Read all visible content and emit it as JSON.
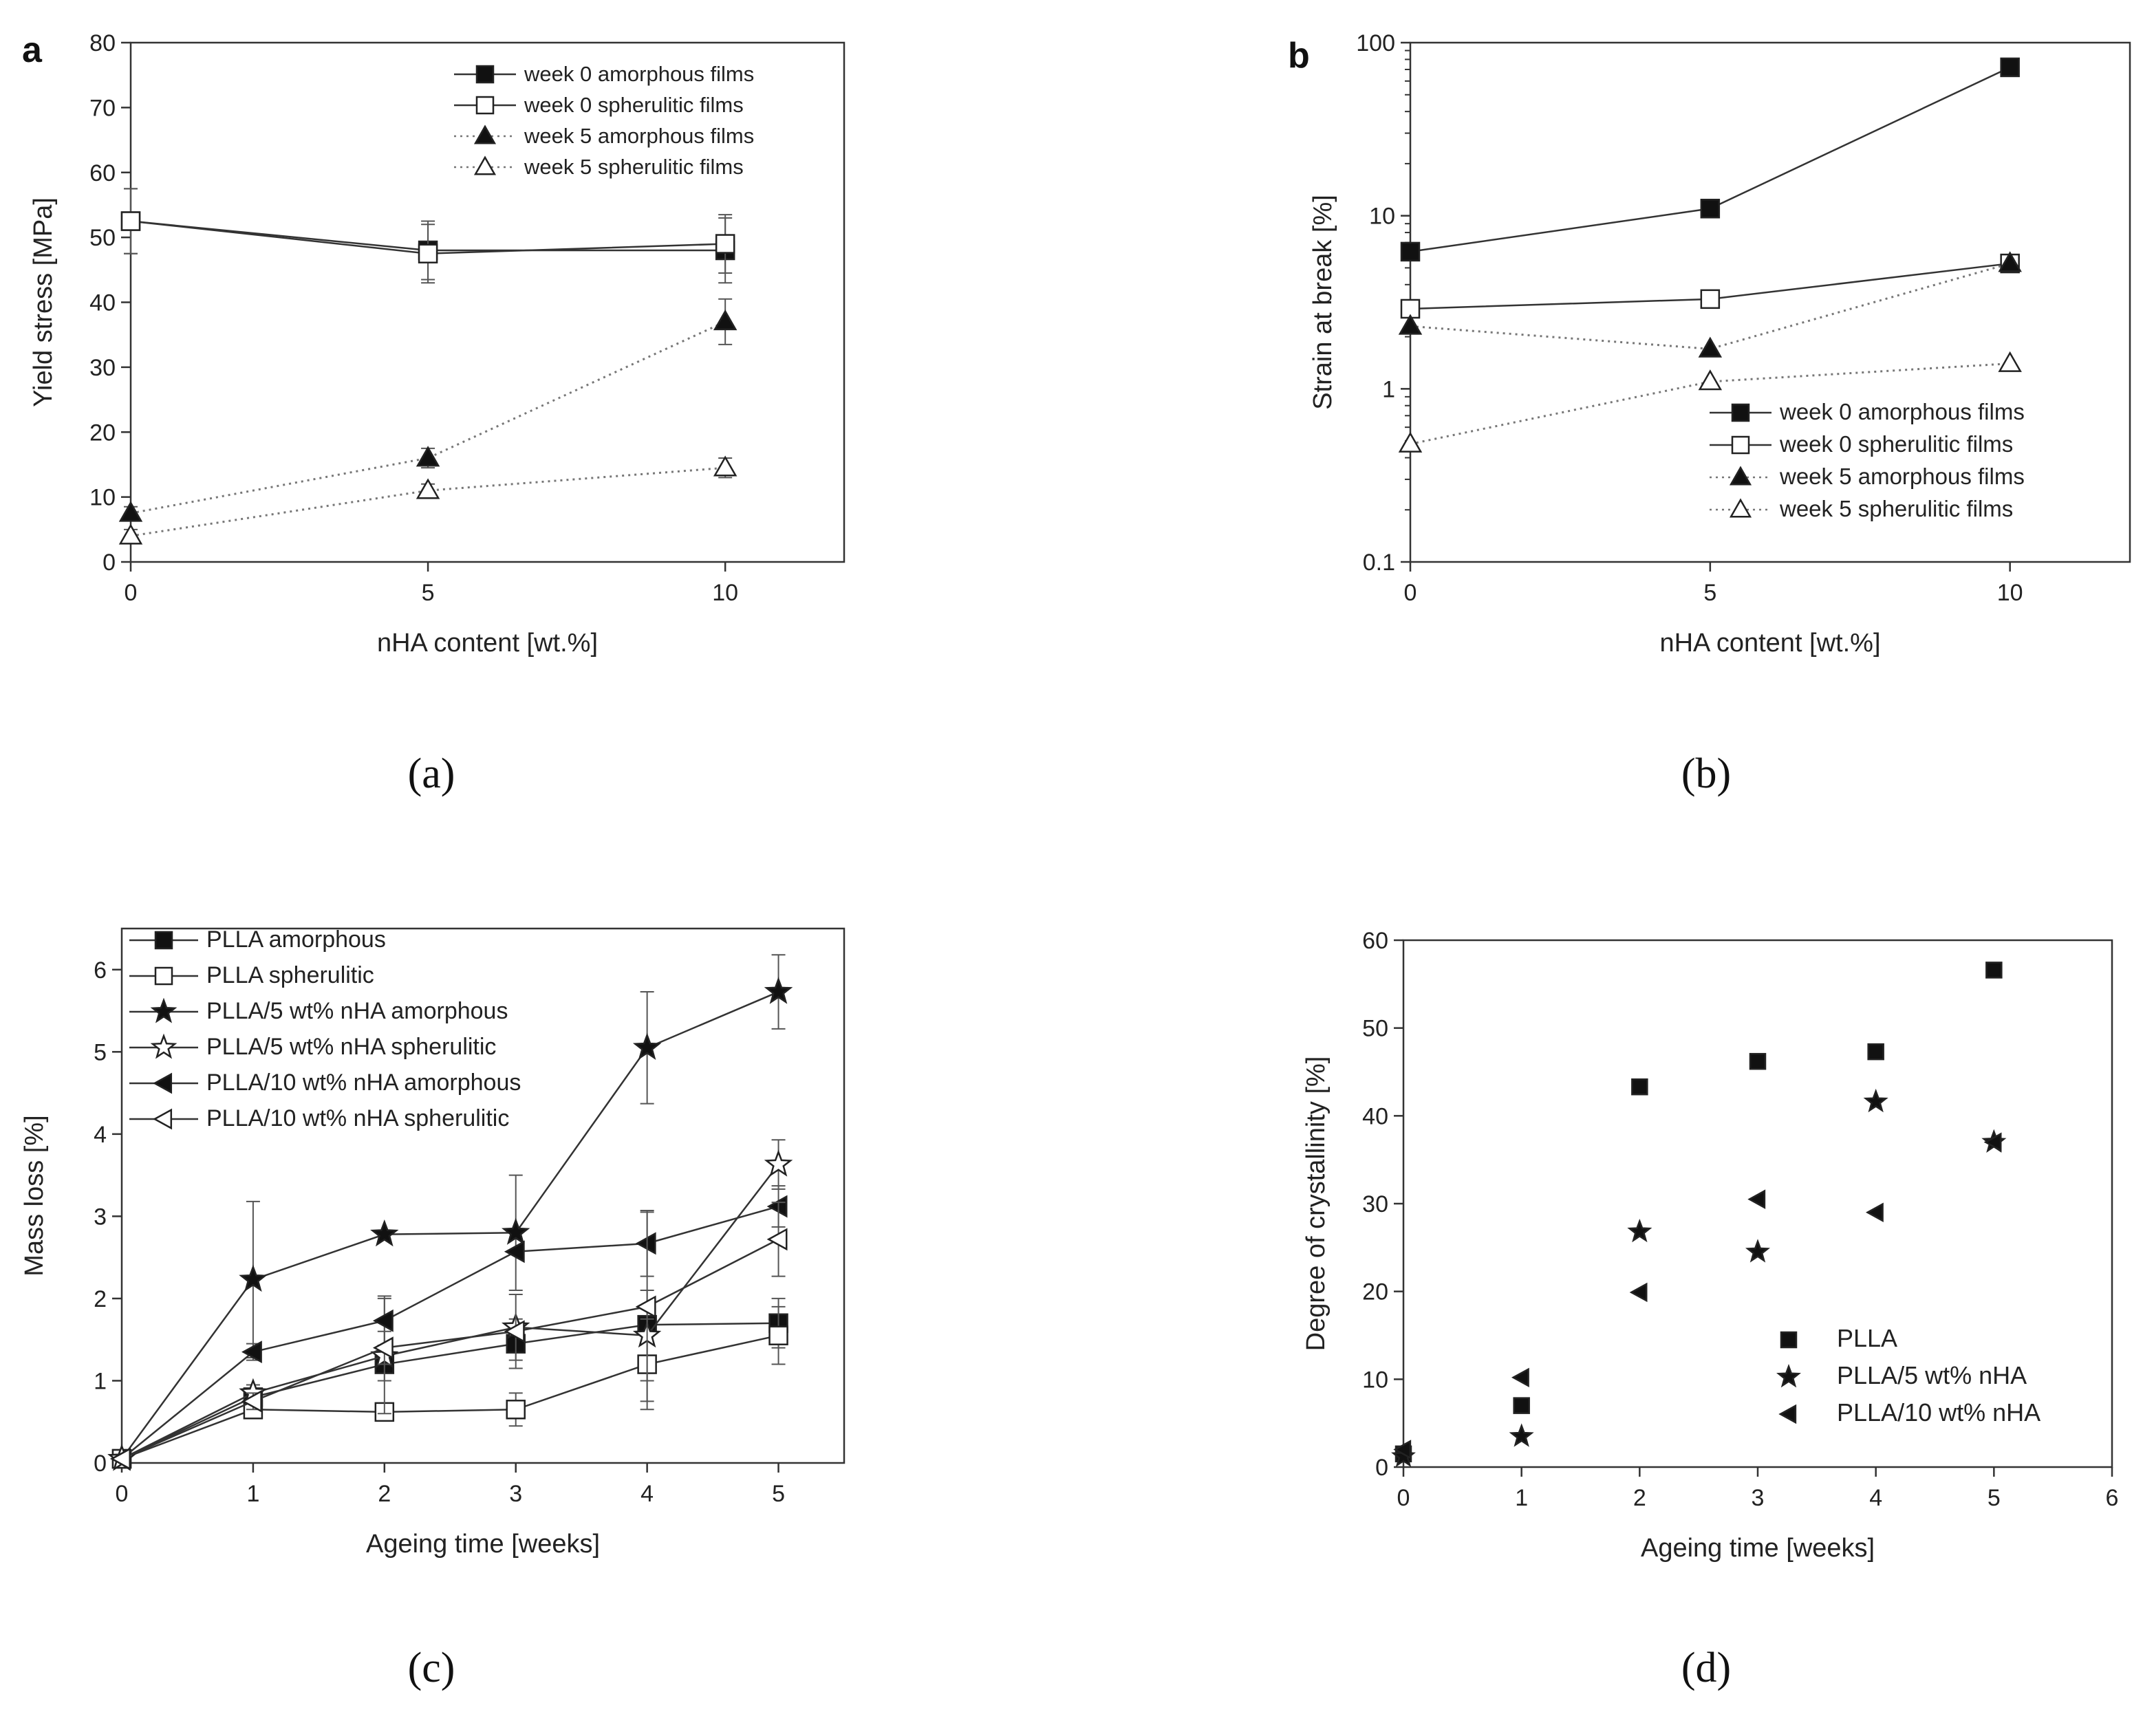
{
  "figure": {
    "captions": [
      "(a)",
      "(b)",
      "(c)",
      "(d)"
    ]
  },
  "chart_data": [
    {
      "id": "a",
      "type": "line",
      "panel_letter": "a",
      "caption": "(a)",
      "xlabel": "nHA content [wt.%]",
      "ylabel": "Yield stress [MPa]",
      "x_scale": "linear",
      "y_scale": "linear",
      "xlim": [
        0,
        12
      ],
      "ylim": [
        0,
        80
      ],
      "x_ticks": [
        0,
        5,
        10
      ],
      "x_tick_labels": [
        "0",
        "5",
        "10"
      ],
      "y_ticks": [
        0,
        10,
        20,
        30,
        40,
        50,
        60,
        70,
        80
      ],
      "y_tick_labels": [
        "0",
        "10",
        "20",
        "30",
        "40",
        "50",
        "60",
        "70",
        "80"
      ],
      "legend_position": "top-right",
      "x": [
        0,
        5,
        10
      ],
      "series": [
        {
          "name": "week 0 amorphous films",
          "marker": "square-filled",
          "line": "solid",
          "values": [
            52.5,
            48.0,
            48.0
          ],
          "errors": [
            5.0,
            4.5,
            5.0
          ]
        },
        {
          "name": "week 0 spherulitic films",
          "marker": "square-open",
          "line": "solid",
          "values": [
            52.5,
            47.5,
            49.0
          ],
          "errors": [
            5.0,
            4.5,
            4.5
          ]
        },
        {
          "name": "week 5 amorphous films",
          "marker": "triangle-filled",
          "line": "dotted",
          "values": [
            7.5,
            16.0,
            37.0
          ],
          "errors": [
            1.0,
            1.5,
            3.5
          ]
        },
        {
          "name": "week 5 spherulitic films",
          "marker": "triangle-open",
          "line": "dotted",
          "values": [
            4.0,
            11.0,
            14.5
          ],
          "errors": [
            1.0,
            1.0,
            1.5
          ]
        }
      ]
    },
    {
      "id": "b",
      "type": "line",
      "panel_letter": "b",
      "caption": "(b)",
      "xlabel": "nHA content [wt.%]",
      "ylabel": "Strain at break [%]",
      "x_scale": "linear",
      "y_scale": "log",
      "xlim": [
        0,
        12
      ],
      "ylim": [
        0.1,
        100
      ],
      "x_ticks": [
        0,
        5,
        10
      ],
      "x_tick_labels": [
        "0",
        "5",
        "10"
      ],
      "y_ticks": [
        0.1,
        1,
        10,
        100
      ],
      "y_tick_labels": [
        "0.1",
        "1",
        "10",
        "100"
      ],
      "legend_position": "bottom-right",
      "x": [
        0,
        5,
        10
      ],
      "series": [
        {
          "name": "week 0 amorphous films",
          "marker": "square-filled",
          "line": "solid",
          "values": [
            6.2,
            11.0,
            72.0
          ]
        },
        {
          "name": "week 0 spherulitic films",
          "marker": "square-open",
          "line": "solid",
          "values": [
            2.9,
            3.3,
            5.3
          ]
        },
        {
          "name": "week 5 amorphous films",
          "marker": "triangle-filled",
          "line": "dotted",
          "values": [
            2.3,
            1.7,
            5.3
          ]
        },
        {
          "name": "week 5 spherulitic films",
          "marker": "triangle-open",
          "line": "dotted",
          "values": [
            0.48,
            1.1,
            1.4
          ]
        }
      ]
    },
    {
      "id": "c",
      "type": "line",
      "panel_letter": "",
      "caption": "(c)",
      "xlabel": "Ageing time [weeks]",
      "ylabel": "Mass loss [%]",
      "x_scale": "linear",
      "y_scale": "linear",
      "xlim": [
        0,
        5.5
      ],
      "ylim": [
        0,
        6.5
      ],
      "x_ticks": [
        0,
        1,
        2,
        3,
        4,
        5
      ],
      "x_tick_labels": [
        "0",
        "1",
        "2",
        "3",
        "4",
        "5"
      ],
      "y_ticks": [
        0,
        1,
        2,
        3,
        4,
        5,
        6
      ],
      "y_tick_labels": [
        "0",
        "1",
        "2",
        "3",
        "4",
        "5",
        "6"
      ],
      "legend_position": "top-left",
      "x": [
        0,
        1,
        2,
        3,
        4,
        5
      ],
      "series": [
        {
          "name": "PLLA amorphous",
          "marker": "square-filled",
          "line": "solid",
          "values": [
            0.05,
            0.8,
            1.2,
            1.45,
            1.68,
            1.7
          ],
          "errors": [
            0,
            0.1,
            0.2,
            0.2,
            0,
            0.3
          ]
        },
        {
          "name": "PLLA spherulitic",
          "marker": "square-open",
          "line": "solid",
          "values": [
            0.05,
            0.65,
            0.62,
            0.65,
            1.2,
            1.55
          ],
          "errors": [
            0,
            0.1,
            0.1,
            0.2,
            0.55,
            0.35
          ]
        },
        {
          "name": "PLLA/5 wt% nHA amorphous",
          "marker": "star-filled",
          "line": "solid",
          "values": [
            0.05,
            2.23,
            2.78,
            2.8,
            5.05,
            5.73
          ],
          "errors": [
            0,
            0.95,
            0,
            0.7,
            0.68,
            0.45
          ]
        },
        {
          "name": "PLLA/5 wt% nHA spherulitic",
          "marker": "star-open",
          "line": "solid",
          "values": [
            0.05,
            0.85,
            1.3,
            1.65,
            1.55,
            3.63
          ],
          "errors": [
            0,
            0.1,
            0.7,
            0.1,
            0.55,
            0.3
          ]
        },
        {
          "name": "PLLA/10 wt% nHA amorphous",
          "marker": "left-triangle-filled",
          "line": "solid",
          "values": [
            0.05,
            1.35,
            1.73,
            2.57,
            2.67,
            3.12
          ],
          "errors": [
            0,
            0.1,
            0.3,
            0,
            0.4,
            0.25
          ]
        },
        {
          "name": "PLLA/10 wt% nHA spherulitic",
          "marker": "left-triangle-open",
          "line": "solid",
          "values": [
            0.05,
            0.75,
            1.4,
            1.6,
            1.9,
            2.72
          ],
          "errors": [
            0,
            0.1,
            0.2,
            0.45,
            1.15,
            0.45
          ]
        }
      ]
    },
    {
      "id": "d",
      "type": "scatter",
      "panel_letter": "",
      "caption": "(d)",
      "xlabel": "Ageing time [weeks]",
      "ylabel": "Degree of crystallinity [%]",
      "x_scale": "linear",
      "y_scale": "linear",
      "xlim": [
        0,
        6
      ],
      "ylim": [
        0,
        60
      ],
      "x_ticks": [
        0,
        1,
        2,
        3,
        4,
        5,
        6
      ],
      "x_tick_labels": [
        "0",
        "1",
        "2",
        "3",
        "4",
        "5",
        "6"
      ],
      "y_ticks": [
        0,
        10,
        20,
        30,
        40,
        50,
        60
      ],
      "y_tick_labels": [
        "0",
        "10",
        "20",
        "30",
        "40",
        "50",
        "60"
      ],
      "legend_position": "bottom-right",
      "x": [
        0,
        1,
        2,
        3,
        4,
        5
      ],
      "series": [
        {
          "name": "PLLA",
          "marker": "square-filled",
          "line": "none",
          "values": [
            1.5,
            7.0,
            43.3,
            46.2,
            47.3,
            56.6
          ]
        },
        {
          "name": "PLLA/5 wt% nHA",
          "marker": "star-filled",
          "line": "none",
          "values": [
            1.2,
            3.5,
            26.8,
            24.5,
            41.6,
            37.0
          ]
        },
        {
          "name": "PLLA/10 wt% nHA",
          "marker": "left-triangle-filled",
          "line": "none",
          "values": [
            2.0,
            10.2,
            19.9,
            30.5,
            29.0,
            37.0
          ]
        }
      ]
    }
  ]
}
